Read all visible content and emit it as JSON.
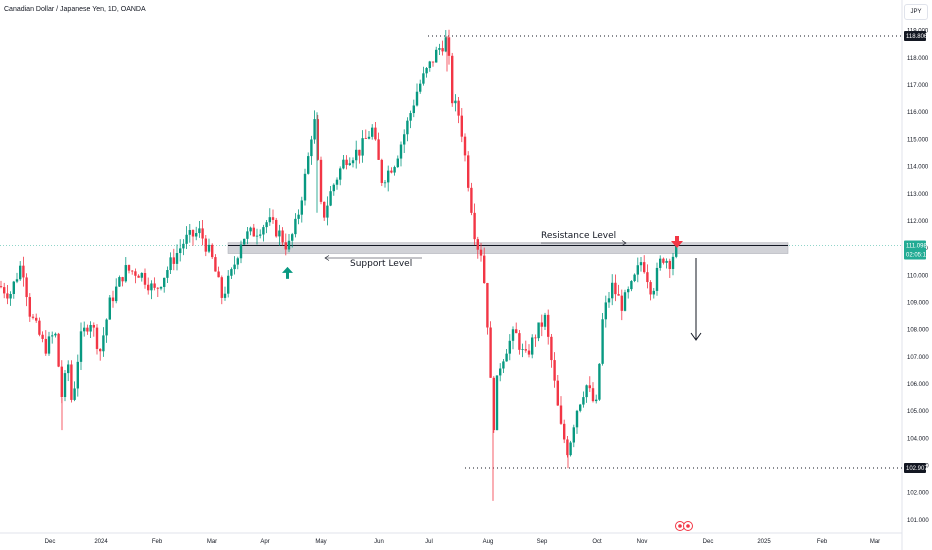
{
  "title": "Canadian Dollar / Japanese Yen, 1D, OANDA",
  "currency_button": "JPY",
  "price_labels": {
    "high": "118.806",
    "low": "102.907",
    "current": "111.098",
    "countdown": "02:05:16"
  },
  "annotations": {
    "resistance": "Resistance Level",
    "support": "Support Level"
  },
  "colors": {
    "up": "#089981",
    "down": "#f23645",
    "zone": "#c9cbd1",
    "current_price": "#22ab94",
    "axis_text": "#131722",
    "axis_line": "#e0e3eb"
  },
  "icons": {
    "support_marker": "arrow-up-icon",
    "resistance_marker": "arrow-down-icon",
    "projection": "arrow-down-icon",
    "event_markers": "event-icon"
  },
  "chart_data": {
    "type": "candlestick",
    "ylim": [
      100.7,
      119.1
    ],
    "y_ticks": [
      101.0,
      102.0,
      103.0,
      104.0,
      105.0,
      106.0,
      107.0,
      108.0,
      109.0,
      110.0,
      111.0,
      112.0,
      113.0,
      114.0,
      115.0,
      116.0,
      117.0,
      118.0,
      119.0
    ],
    "x_ticks": [
      "Dec",
      "2024",
      "Feb",
      "Mar",
      "Apr",
      "May",
      "Jun",
      "Jul",
      "Aug",
      "Sep",
      "Oct",
      "Nov",
      "Dec",
      "2025",
      "Feb",
      "Mar"
    ],
    "support_resistance_zone": [
      110.8,
      111.2
    ],
    "horizontal_levels": [
      118.806,
      102.907
    ],
    "current_price": 111.098,
    "price_path": [
      [
        0,
        109.6
      ],
      [
        10,
        109.3
      ],
      [
        22,
        110.5
      ],
      [
        30,
        108.6
      ],
      [
        45,
        107.3
      ],
      [
        55,
        107.9
      ],
      [
        62,
        105.5
      ],
      [
        68,
        106.8
      ],
      [
        72,
        105.2
      ],
      [
        80,
        107.6
      ],
      [
        90,
        108.4
      ],
      [
        100,
        107.2
      ],
      [
        110,
        109.0
      ],
      [
        125,
        110.2
      ],
      [
        140,
        110.1
      ],
      [
        155,
        109.4
      ],
      [
        170,
        110.4
      ],
      [
        185,
        111.3
      ],
      [
        200,
        111.6
      ],
      [
        212,
        110.6
      ],
      [
        222,
        109.2
      ],
      [
        232,
        110.1
      ],
      [
        242,
        111.4
      ],
      [
        255,
        111.6
      ],
      [
        268,
        112.0
      ],
      [
        280,
        111.5
      ],
      [
        288,
        111.0
      ],
      [
        297,
        112.0
      ],
      [
        307,
        114.0
      ],
      [
        314,
        115.9
      ],
      [
        322,
        112.0
      ],
      [
        332,
        113.2
      ],
      [
        345,
        114.3
      ],
      [
        360,
        114.6
      ],
      [
        372,
        115.4
      ],
      [
        382,
        113.5
      ],
      [
        395,
        114.2
      ],
      [
        405,
        115.3
      ],
      [
        418,
        116.9
      ],
      [
        428,
        117.6
      ],
      [
        438,
        118.3
      ],
      [
        447,
        118.7
      ],
      [
        452,
        116.5
      ],
      [
        460,
        115.8
      ],
      [
        468,
        113.5
      ],
      [
        476,
        111.2
      ],
      [
        482,
        110.8
      ],
      [
        488,
        108.0
      ],
      [
        493,
        104.2
      ],
      [
        498,
        106.5
      ],
      [
        506,
        107.3
      ],
      [
        515,
        107.9
      ],
      [
        525,
        106.9
      ],
      [
        535,
        107.8
      ],
      [
        545,
        108.4
      ],
      [
        552,
        106.7
      ],
      [
        560,
        104.5
      ],
      [
        568,
        103.5
      ],
      [
        576,
        105.0
      ],
      [
        586,
        106.0
      ],
      [
        596,
        105.1
      ],
      [
        603,
        108.5
      ],
      [
        612,
        109.6
      ],
      [
        622,
        108.9
      ],
      [
        632,
        109.6
      ],
      [
        642,
        110.6
      ],
      [
        652,
        109.4
      ],
      [
        662,
        110.7
      ],
      [
        670,
        110.5
      ],
      [
        677,
        111.1
      ]
    ]
  }
}
